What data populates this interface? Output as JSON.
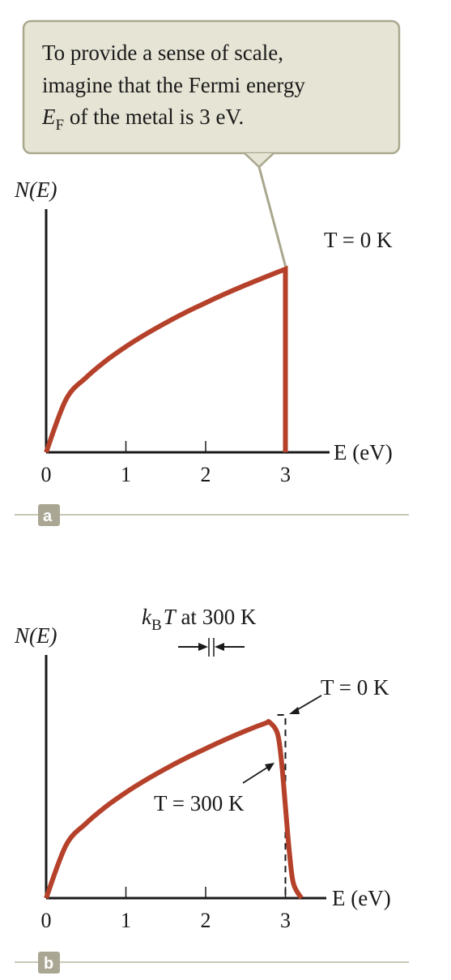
{
  "callout": {
    "line1": "To provide a sense of scale,",
    "line2": "imagine that the Fermi energy",
    "line3_symbol": "E",
    "line3_sub": "F",
    "line3_rest": " of the metal is 3 eV."
  },
  "colors": {
    "curve": "#b5412a",
    "axis": "#1a1a1a",
    "callout_fill": "#e6e4d4",
    "callout_stroke": "#a9a88e",
    "badge": "#a9a693",
    "divider": "#c9c7b6"
  },
  "chart_data": [
    {
      "panel": "a",
      "type": "line",
      "ylabel": "N(E)",
      "xlabel": "E (eV)",
      "xlim": [
        0,
        3.5
      ],
      "ylim": [
        0,
        1.0
      ],
      "ticks": [
        "0",
        "1",
        "2",
        "3"
      ],
      "temperature_label": "T = 0 K",
      "fermi_energy": 3,
      "series": [
        {
          "name": "T = 0 K",
          "x": [
            0,
            0.25,
            0.5,
            0.75,
            1.0,
            1.25,
            1.5,
            1.75,
            2.0,
            2.25,
            2.5,
            2.75,
            3.0,
            3.0
          ],
          "y": [
            0,
            0.289,
            0.408,
            0.5,
            0.577,
            0.645,
            0.707,
            0.764,
            0.816,
            0.866,
            0.913,
            0.957,
            1.0,
            0
          ]
        }
      ]
    },
    {
      "panel": "b",
      "type": "line",
      "ylabel": "N(E)",
      "xlabel": "E (eV)",
      "xlim": [
        0,
        3.5
      ],
      "ylim": [
        0,
        1.0
      ],
      "ticks": [
        "0",
        "1",
        "2",
        "3"
      ],
      "kT_label_symbol": "k",
      "kT_label_sub": "B",
      "kT_label_T": "T",
      "kT_label_rest": " at 300 K",
      "label_T0": "T = 0 K",
      "label_T300": "T = 300 K",
      "series": [
        {
          "name": "T = 300 K",
          "x": [
            0,
            0.25,
            0.5,
            0.75,
            1.0,
            1.25,
            1.5,
            1.75,
            2.0,
            2.25,
            2.5,
            2.75,
            2.8,
            2.9,
            2.95,
            3.0,
            3.05,
            3.1,
            3.2
          ],
          "y": [
            0,
            0.289,
            0.408,
            0.5,
            0.577,
            0.645,
            0.707,
            0.764,
            0.816,
            0.866,
            0.913,
            0.955,
            0.96,
            0.9,
            0.75,
            0.5,
            0.25,
            0.08,
            0
          ]
        },
        {
          "name": "T = 0 K",
          "x": [
            2.9,
            3.0,
            3.0
          ],
          "y": [
            1.0,
            1.0,
            0
          ],
          "dashed": true
        }
      ]
    }
  ],
  "badges": {
    "a": "a",
    "b": "b"
  }
}
